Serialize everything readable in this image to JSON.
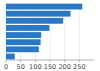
{
  "chart_data": {
    "type": "bar",
    "orientation": "horizontal",
    "categories": [
      null,
      null,
      null,
      null,
      null,
      null,
      null,
      null
    ],
    "values": [
      260,
      220,
      195,
      148,
      120,
      118,
      112,
      30
    ],
    "color": "#2878c3",
    "xlim": [
      0,
      300
    ],
    "xticks": [
      0,
      50,
      100,
      150,
      200,
      250
    ],
    "grid": true,
    "tick_labels": "x"
  }
}
